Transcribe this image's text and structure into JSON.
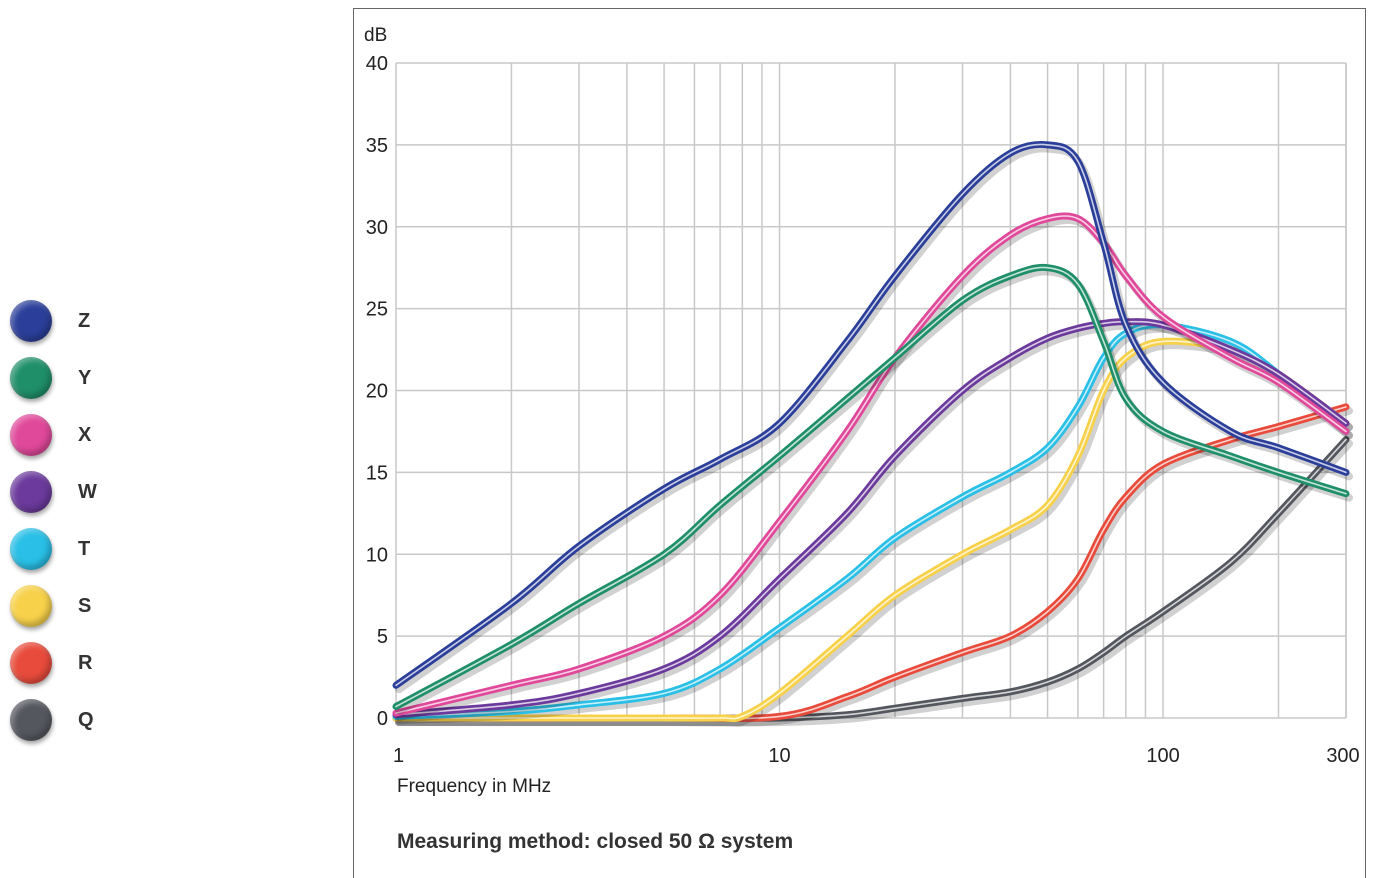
{
  "chart_data": {
    "type": "line",
    "ylabel": "dB",
    "xlabel": "Frequency in MHz",
    "xscale": "log",
    "xlim": [
      1,
      300
    ],
    "ylim": [
      0,
      40
    ],
    "x_ticks": [
      1,
      10,
      100,
      300
    ],
    "x_tick_labels": [
      "1",
      "10",
      "100",
      "300"
    ],
    "y_ticks": [
      0,
      5,
      10,
      15,
      20,
      25,
      30,
      35,
      40
    ],
    "y_tick_labels": [
      "0",
      "5",
      "10",
      "15",
      "20",
      "25",
      "30",
      "35",
      "40"
    ],
    "grid": true,
    "legend_position": "left",
    "note": "Measuring method: closed 50 Ω system",
    "series": [
      {
        "name": "Z",
        "color": "#2b3f9a",
        "x": [
          1,
          2,
          3,
          5,
          7,
          10,
          15,
          20,
          30,
          40,
          50,
          60,
          70,
          80,
          100,
          150,
          200,
          300
        ],
        "y": [
          2,
          7,
          10.5,
          14,
          15.8,
          18,
          23,
          27,
          32,
          34.5,
          35,
          34,
          29,
          24,
          20.5,
          17.5,
          16.5,
          15
        ]
      },
      {
        "name": "Y",
        "color": "#1f8f6a",
        "x": [
          1,
          2,
          3,
          5,
          7,
          10,
          15,
          20,
          30,
          40,
          50,
          60,
          70,
          80,
          100,
          150,
          200,
          300
        ],
        "y": [
          0.7,
          4.5,
          7,
          10,
          13,
          16,
          19.5,
          22,
          25.5,
          27,
          27.5,
          26.5,
          23,
          19.5,
          17.5,
          16,
          15,
          13.7
        ]
      },
      {
        "name": "X",
        "color": "#e0489a",
        "x": [
          1,
          2,
          3,
          5,
          7,
          10,
          15,
          20,
          30,
          40,
          50,
          60,
          70,
          80,
          100,
          150,
          200,
          300
        ],
        "y": [
          0.3,
          2,
          3,
          5,
          7.5,
          12,
          17.5,
          22,
          27,
          29.5,
          30.5,
          30.5,
          29,
          27,
          24.5,
          22,
          20.5,
          17.5
        ]
      },
      {
        "name": "W",
        "color": "#6b3a9c",
        "x": [
          1,
          2,
          3,
          5,
          7,
          10,
          15,
          20,
          30,
          40,
          50,
          60,
          70,
          80,
          100,
          150,
          200,
          300
        ],
        "y": [
          0.2,
          0.8,
          1.5,
          3,
          5,
          8.5,
          12.5,
          16,
          20,
          22,
          23.2,
          23.8,
          24.1,
          24.2,
          24,
          22.5,
          21,
          18
        ]
      },
      {
        "name": "T",
        "color": "#29bfe6",
        "x": [
          1,
          2,
          3,
          5,
          7,
          10,
          15,
          20,
          30,
          40,
          50,
          60,
          70,
          80,
          100,
          150,
          200,
          300
        ],
        "y": [
          0.1,
          0.4,
          0.8,
          1.5,
          3,
          5.5,
          8.5,
          11,
          13.5,
          15,
          16.5,
          19,
          22,
          23.5,
          24,
          23,
          21,
          17.5
        ]
      },
      {
        "name": "S",
        "color": "#f7d14a",
        "x": [
          1,
          2,
          3,
          5,
          7,
          8,
          10,
          15,
          20,
          30,
          40,
          50,
          60,
          70,
          80,
          100,
          150,
          200,
          300
        ],
        "y": [
          0,
          0,
          0,
          0,
          0,
          0.1,
          1.5,
          5,
          7.5,
          10,
          11.5,
          13,
          16,
          20,
          22,
          23,
          22.5,
          21,
          18
        ]
      },
      {
        "name": "R",
        "color": "#e84b3b",
        "x": [
          1,
          5,
          10,
          15,
          20,
          30,
          40,
          50,
          60,
          70,
          80,
          100,
          150,
          200,
          300
        ],
        "y": [
          0,
          0,
          0.1,
          1.3,
          2.5,
          4,
          5,
          6.5,
          8.5,
          11.5,
          13.5,
          15.5,
          17,
          17.8,
          19
        ]
      },
      {
        "name": "Q",
        "color": "#55575f",
        "x": [
          1,
          5,
          10,
          15,
          20,
          30,
          40,
          50,
          60,
          70,
          80,
          100,
          150,
          200,
          300
        ],
        "y": [
          0,
          0,
          0,
          0.2,
          0.6,
          1.2,
          1.6,
          2.2,
          3,
          4,
          5,
          6.5,
          9.5,
          12.5,
          17
        ]
      }
    ]
  }
}
